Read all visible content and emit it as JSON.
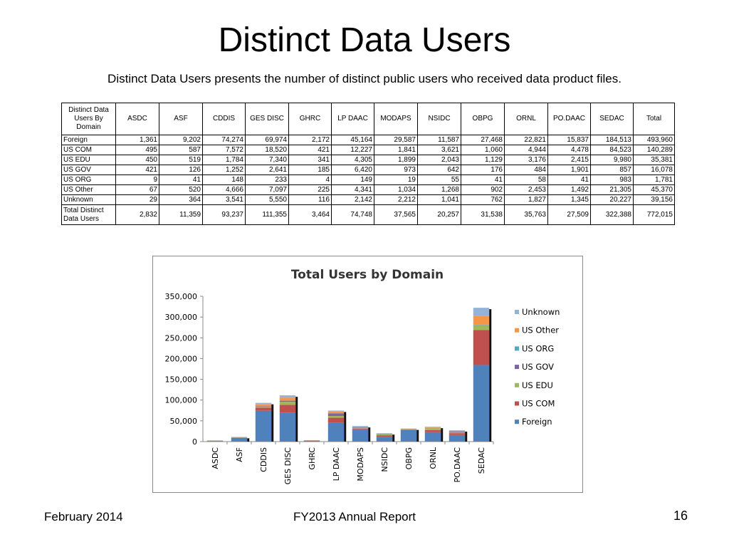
{
  "slide": {
    "title": "Distinct Data Users",
    "subtitle": "Distinct Data Users presents the number of distinct public users who received data product files.",
    "footer_left": "February 2014",
    "footer_center": "FY2013 Annual Report",
    "page_number": "16"
  },
  "table": {
    "corner_header": "Distinct Data Users By Domain",
    "columns": [
      "ASDC",
      "ASF",
      "CDDIS",
      "GES DISC",
      "GHRC",
      "LP DAAC",
      "MODAPS",
      "NSIDC",
      "OBPG",
      "ORNL",
      "PO.DAAC",
      "SEDAC",
      "Total"
    ],
    "rows": [
      {
        "label": "Foreign",
        "values": [
          "1,361",
          "9,202",
          "74,274",
          "69,974",
          "2,172",
          "45,164",
          "29,587",
          "11,587",
          "27,468",
          "22,821",
          "15,837",
          "184,513",
          "493,960"
        ]
      },
      {
        "label": "US COM",
        "values": [
          "495",
          "587",
          "7,572",
          "18,520",
          "421",
          "12,227",
          "1,841",
          "3,621",
          "1,060",
          "4,944",
          "4,478",
          "84,523",
          "140,289"
        ]
      },
      {
        "label": "US EDU",
        "values": [
          "450",
          "519",
          "1,784",
          "7,340",
          "341",
          "4,305",
          "1,899",
          "2,043",
          "1,129",
          "3,176",
          "2,415",
          "9,980",
          "35,381"
        ]
      },
      {
        "label": "US GOV",
        "values": [
          "421",
          "126",
          "1,252",
          "2,641",
          "185",
          "6,420",
          "973",
          "642",
          "176",
          "484",
          "1,901",
          "857",
          "16,078"
        ]
      },
      {
        "label": "US ORG",
        "values": [
          "9",
          "41",
          "148",
          "233",
          "4",
          "149",
          "19",
          "55",
          "41",
          "58",
          "41",
          "983",
          "1,781"
        ]
      },
      {
        "label": "US Other",
        "values": [
          "67",
          "520",
          "4,666",
          "7,097",
          "225",
          "4,341",
          "1,034",
          "1,268",
          "902",
          "2,453",
          "1,492",
          "21,305",
          "45,370"
        ]
      },
      {
        "label": "Unknown",
        "values": [
          "29",
          "364",
          "3,541",
          "5,550",
          "116",
          "2,142",
          "2,212",
          "1,041",
          "762",
          "1,827",
          "1,345",
          "20,227",
          "39,156"
        ]
      },
      {
        "label": "Total Distinct Data Users",
        "values": [
          "2,832",
          "11,359",
          "93,237",
          "111,355",
          "3,464",
          "74,748",
          "37,565",
          "20,257",
          "31,538",
          "35,763",
          "27,509",
          "322,388",
          "772,015"
        ]
      }
    ]
  },
  "chart_data": {
    "type": "bar",
    "stacked": true,
    "title": "Total Users by Domain",
    "categories": [
      "ASDC",
      "ASF",
      "CDDIS",
      "GES DISC",
      "GHRC",
      "LP DAAC",
      "MODAPS",
      "NSIDC",
      "OBPG",
      "ORNL",
      "PO.DAAC",
      "SEDAC"
    ],
    "series": [
      {
        "name": "Foreign",
        "color": "#4f81bd",
        "values": [
          1361,
          9202,
          74274,
          69974,
          2172,
          45164,
          29587,
          11587,
          27468,
          22821,
          15837,
          184513
        ]
      },
      {
        "name": "US COM",
        "color": "#c0504d",
        "values": [
          495,
          587,
          7572,
          18520,
          421,
          12227,
          1841,
          3621,
          1060,
          4944,
          4478,
          84523
        ]
      },
      {
        "name": "US EDU",
        "color": "#9bbb59",
        "values": [
          450,
          519,
          1784,
          7340,
          341,
          4305,
          1899,
          2043,
          1129,
          3176,
          2415,
          9980
        ]
      },
      {
        "name": "US GOV",
        "color": "#8064a2",
        "values": [
          421,
          126,
          1252,
          2641,
          185,
          6420,
          973,
          642,
          176,
          484,
          1901,
          857
        ]
      },
      {
        "name": "US ORG",
        "color": "#4bacc6",
        "values": [
          9,
          41,
          148,
          233,
          4,
          149,
          19,
          55,
          41,
          58,
          41,
          983
        ]
      },
      {
        "name": "US Other",
        "color": "#f79646",
        "values": [
          67,
          520,
          4666,
          7097,
          225,
          4341,
          1034,
          1268,
          902,
          2453,
          1492,
          21305
        ]
      },
      {
        "name": "Unknown",
        "color": "#95b3d7",
        "values": [
          29,
          364,
          3541,
          5550,
          116,
          2142,
          2212,
          1041,
          762,
          1827,
          1345,
          20227
        ]
      }
    ],
    "yticks": [
      "0",
      "50,000",
      "100,000",
      "150,000",
      "200,000",
      "250,000",
      "300,000",
      "350,000"
    ],
    "ylim": [
      0,
      350000
    ],
    "legend_position": "right",
    "legend_order": [
      "Unknown",
      "US Other",
      "US ORG",
      "US GOV",
      "US EDU",
      "US COM",
      "Foreign"
    ]
  }
}
